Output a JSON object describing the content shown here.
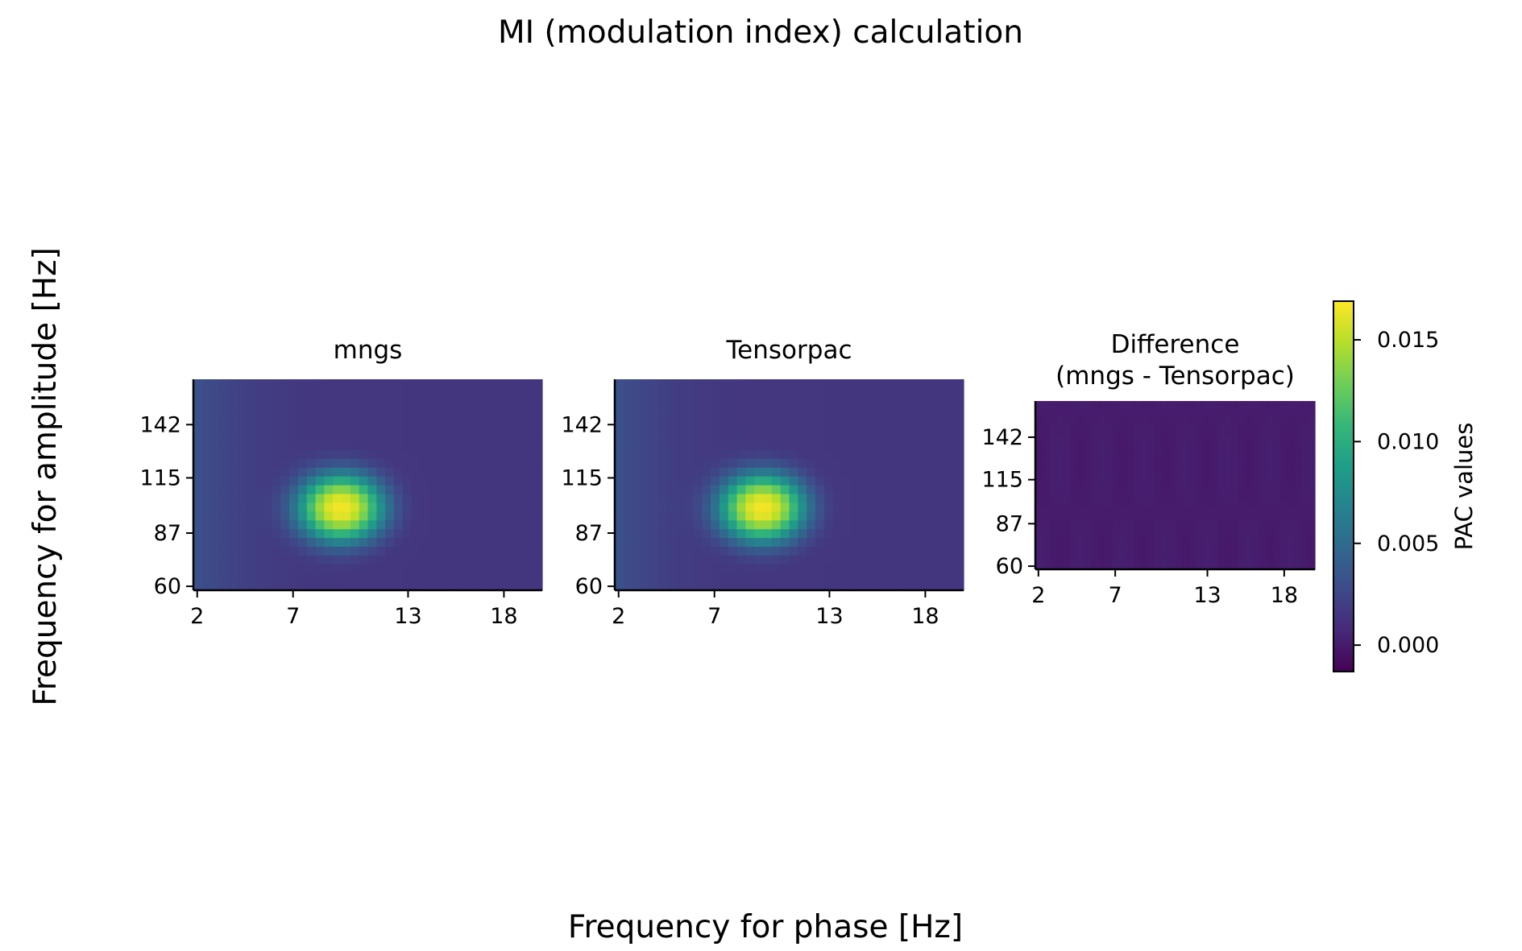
{
  "figure": {
    "suptitle": "MI (modulation index) calculation",
    "xlabel": "Frequency for phase [Hz]",
    "ylabel": "Frequency for amplitude [Hz]"
  },
  "chart_data": [
    {
      "type": "heatmap",
      "title": "mngs",
      "colormap": "viridis",
      "xlim": [
        1.8,
        20.0
      ],
      "ylim": [
        58.0,
        165.0
      ],
      "x_ticks": [
        2,
        7,
        13,
        18
      ],
      "y_ticks": [
        60,
        87,
        115,
        142
      ],
      "peak": {
        "x_phase_hz": 9.5,
        "y_amp_hz": 100,
        "value": 0.0165
      },
      "background_value": 0.0015,
      "low_freq_edge_value": 0.0032
    },
    {
      "type": "heatmap",
      "title": "Tensorpac",
      "colormap": "viridis",
      "xlim": [
        1.8,
        20.0
      ],
      "ylim": [
        58.0,
        165.0
      ],
      "x_ticks": [
        2,
        7,
        13,
        18
      ],
      "y_ticks": [
        60,
        87,
        115,
        142
      ],
      "peak": {
        "x_phase_hz": 9.5,
        "y_amp_hz": 100,
        "value": 0.0165
      },
      "background_value": 0.0015,
      "low_freq_edge_value": 0.0032
    },
    {
      "type": "heatmap",
      "title": "Difference\n(mngs - Tensorpac)",
      "title_lines": [
        "Difference",
        "(mngs - Tensorpac)"
      ],
      "colormap": "viridis",
      "xlim": [
        1.8,
        20.0
      ],
      "ylim": [
        58.0,
        165.0
      ],
      "x_ticks": [
        2,
        7,
        13,
        18
      ],
      "y_ticks": [
        60,
        87,
        115,
        142
      ],
      "background_value": 0.0001
    }
  ],
  "colorbar": {
    "label": "PAC values",
    "vmin": -0.0013,
    "vmax": 0.0169,
    "ticks": [
      0.0,
      0.005,
      0.01,
      0.015
    ],
    "tick_labels": [
      "0.000",
      "0.005",
      "0.010",
      "0.015"
    ],
    "colormap": "viridis"
  }
}
